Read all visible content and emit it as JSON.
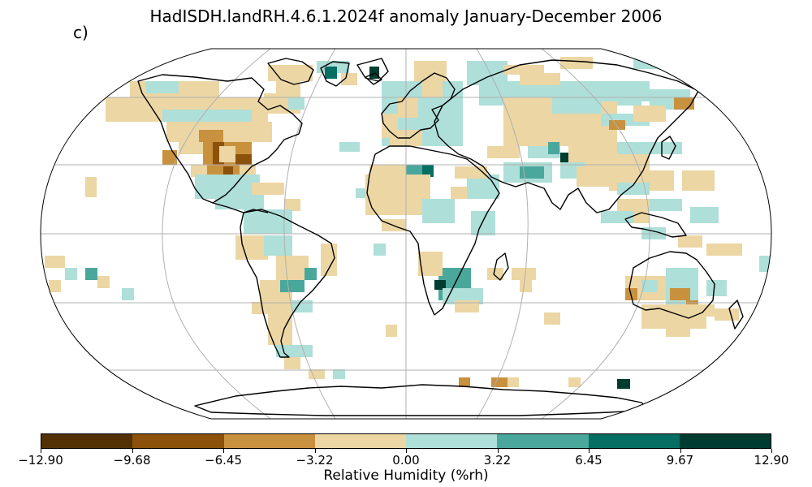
{
  "title": "HadISDH.landRH.4.6.1.2024f anomaly January-December 2006",
  "panel_label": "c)",
  "colorbar": {
    "label": "Relative Humidity (%rh)",
    "ticks": [
      "−12.90",
      "−9.68",
      "−6.45",
      "−3.22",
      "0.00",
      "3.22",
      "6.45",
      "9.67",
      "12.90"
    ],
    "colors": [
      "#543005",
      "#8c510a",
      "#c8913e",
      "#ecd6a4",
      "#aedfd9",
      "#4aa79b",
      "#066e62",
      "#003c30"
    ]
  },
  "map": {
    "projection": "Robinson",
    "gridlines": true,
    "colors": {
      "dry_strong": "#8c510a",
      "dry_mid": "#c8913e",
      "dry_light": "#ecd6a4",
      "wet_light": "#aedfd9",
      "wet_mid": "#4aa79b",
      "wet_strong": "#066e62",
      "wet_extreme": "#003c30"
    }
  }
}
